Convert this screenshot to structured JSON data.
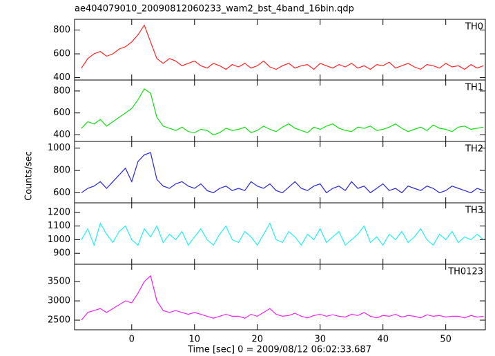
{
  "title": "ae404079010_20090812060233_wam2_bst_4band_16bin.qdp",
  "xlabel": "Time [sec] 0 = 2009/08/12 06:02:33.687",
  "ylabel": "Counts/sec",
  "xlim": [
    -9.1,
    56.3
  ],
  "xticks": [
    0,
    10,
    20,
    30,
    40,
    50
  ],
  "x": [
    -8,
    -7,
    -6,
    -5,
    -4,
    -3,
    -2,
    -1,
    0,
    1,
    2,
    3,
    4,
    5,
    6,
    7,
    8,
    9,
    10,
    11,
    12,
    13,
    14,
    15,
    16,
    17,
    18,
    19,
    20,
    21,
    22,
    23,
    24,
    25,
    26,
    27,
    28,
    29,
    30,
    31,
    32,
    33,
    34,
    35,
    36,
    37,
    38,
    39,
    40,
    41,
    42,
    43,
    44,
    45,
    46,
    47,
    48,
    49,
    50,
    51,
    52,
    53,
    54,
    55,
    56
  ],
  "chart_data": [
    {
      "type": "line",
      "label": "TH0",
      "color": "#ff2020",
      "ylim": [
        380,
        890
      ],
      "yticks": [
        400,
        600,
        800
      ],
      "values": [
        480,
        560,
        600,
        620,
        580,
        600,
        640,
        660,
        700,
        760,
        840,
        700,
        560,
        520,
        560,
        540,
        500,
        520,
        540,
        500,
        480,
        520,
        500,
        470,
        510,
        490,
        520,
        480,
        500,
        540,
        490,
        470,
        500,
        520,
        480,
        500,
        510,
        470,
        520,
        500,
        480,
        510,
        490,
        520,
        480,
        500,
        470,
        510,
        500,
        530,
        480,
        500,
        520,
        490,
        470,
        510,
        500,
        480,
        520,
        490,
        500,
        470,
        510,
        480,
        500
      ]
    },
    {
      "type": "line",
      "label": "TH1",
      "color": "#10e010",
      "ylim": [
        340,
        900
      ],
      "yticks": [
        400,
        600,
        800
      ],
      "values": [
        460,
        520,
        500,
        540,
        480,
        520,
        560,
        600,
        640,
        720,
        820,
        780,
        560,
        480,
        460,
        440,
        470,
        430,
        420,
        450,
        440,
        400,
        420,
        460,
        440,
        450,
        470,
        420,
        440,
        480,
        450,
        430,
        470,
        500,
        460,
        440,
        420,
        470,
        450,
        480,
        500,
        460,
        440,
        430,
        470,
        460,
        480,
        440,
        450,
        470,
        500,
        460,
        430,
        450,
        470,
        440,
        490,
        460,
        450,
        430,
        470,
        480,
        450,
        460,
        470
      ]
    },
    {
      "type": "line",
      "label": "TH2",
      "color": "#2525d5",
      "ylim": [
        510,
        1060
      ],
      "yticks": [
        600,
        800,
        1000
      ],
      "values": [
        600,
        640,
        660,
        700,
        640,
        700,
        760,
        820,
        700,
        880,
        940,
        960,
        720,
        660,
        640,
        680,
        700,
        660,
        640,
        680,
        620,
        600,
        640,
        660,
        620,
        640,
        620,
        700,
        660,
        640,
        680,
        620,
        600,
        650,
        700,
        640,
        620,
        660,
        680,
        600,
        640,
        660,
        620,
        700,
        640,
        660,
        600,
        640,
        680,
        620,
        640,
        600,
        660,
        640,
        620,
        660,
        640,
        600,
        620,
        660,
        640,
        620,
        600,
        640,
        620
      ]
    },
    {
      "type": "line",
      "label": "TH3",
      "color": "#20f0f0",
      "ylim": [
        820,
        1270
      ],
      "yticks": [
        900,
        1000,
        1100,
        1200
      ],
      "values": [
        1000,
        1080,
        960,
        1120,
        1040,
        980,
        1060,
        1100,
        1000,
        960,
        1080,
        1020,
        1100,
        980,
        1040,
        1000,
        1060,
        960,
        1020,
        1080,
        1000,
        960,
        1040,
        1100,
        1000,
        980,
        1060,
        1020,
        960,
        1040,
        1120,
        1000,
        980,
        1060,
        1020,
        960,
        1040,
        1000,
        1080,
        980,
        1020,
        1060,
        960,
        1000,
        1040,
        1100,
        980,
        1020,
        960,
        1040,
        1000,
        1060,
        980,
        1020,
        1080,
        1000,
        960,
        1040,
        1000,
        1060,
        980,
        1020,
        1000,
        1040,
        1000
      ]
    },
    {
      "type": "line",
      "label": "TH0123",
      "color": "#f020f0",
      "ylim": [
        2250,
        3950
      ],
      "yticks": [
        2500,
        3000,
        3500
      ],
      "values": [
        2500,
        2700,
        2750,
        2800,
        2700,
        2800,
        2900,
        3000,
        2950,
        3200,
        3500,
        3650,
        3000,
        2750,
        2700,
        2750,
        2700,
        2650,
        2700,
        2650,
        2600,
        2550,
        2600,
        2650,
        2600,
        2600,
        2550,
        2650,
        2600,
        2700,
        2800,
        2650,
        2600,
        2620,
        2680,
        2600,
        2560,
        2620,
        2650,
        2600,
        2640,
        2600,
        2580,
        2650,
        2620,
        2700,
        2600,
        2560,
        2620,
        2600,
        2650,
        2580,
        2620,
        2600,
        2560,
        2640,
        2600,
        2620,
        2580,
        2600,
        2600,
        2560,
        2620,
        2580,
        2600
      ]
    }
  ]
}
